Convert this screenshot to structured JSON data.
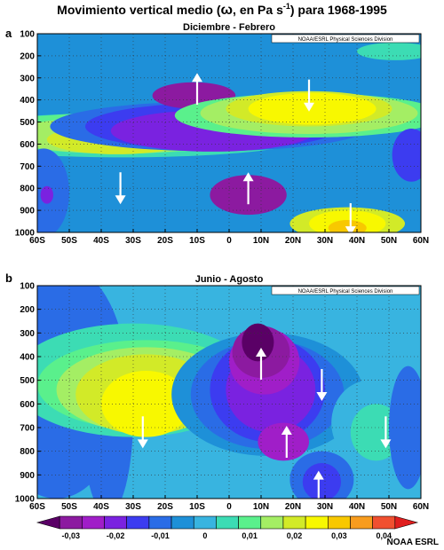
{
  "title_main": "Movimiento vertical medio (",
  "title_omega": "ω",
  "title_units": ", en Pa s",
  "title_exp": "-1",
  "title_tail": ") para 1968-1995",
  "credit": "NOAA ESRL",
  "chart_data": [
    {
      "type": "heatmap",
      "panel": "a",
      "title": "Diciembre - Febrero",
      "watermark": "NOAA/ESRL Physical Sciences Division",
      "x_ticks": [
        "60S",
        "50S",
        "40S",
        "30S",
        "20S",
        "10S",
        "0",
        "10N",
        "20N",
        "30N",
        "40N",
        "50N",
        "60N"
      ],
      "y_ticks": [
        "100",
        "200",
        "300",
        "400",
        "500",
        "600",
        "700",
        "800",
        "900",
        "1000"
      ],
      "xlim": [
        -60,
        60
      ],
      "ylim": [
        100,
        1000
      ],
      "grid": true,
      "features": [
        {
          "lat": -36,
          "p": 580,
          "omega": 0.02
        },
        {
          "lat": -10,
          "p": 450,
          "omega": -0.02
        },
        {
          "lat": 6,
          "p": 800,
          "omega": -0.02
        },
        {
          "lat": 25,
          "p": 450,
          "omega": 0.025
        },
        {
          "lat": 38,
          "p": 930,
          "omega": 0.028
        },
        {
          "lat": 57,
          "p": 700,
          "omega": -0.012
        },
        {
          "lat": -55,
          "p": 900,
          "omega": -0.012
        }
      ],
      "arrows": [
        {
          "lat": -34,
          "p": 800,
          "direction": "down"
        },
        {
          "lat": -10,
          "p": 350,
          "direction": "up"
        },
        {
          "lat": 6,
          "p": 800,
          "direction": "up"
        },
        {
          "lat": 25,
          "p": 380,
          "direction": "down"
        },
        {
          "lat": 38,
          "p": 940,
          "direction": "down"
        }
      ]
    },
    {
      "type": "heatmap",
      "panel": "b",
      "title": "Junio - Agosto",
      "watermark": "NOAA/ESRL Physical Sciences Division",
      "x_ticks": [
        "60S",
        "50S",
        "40S",
        "30S",
        "20S",
        "10S",
        "0",
        "10N",
        "20N",
        "30N",
        "40N",
        "50N",
        "60N"
      ],
      "y_ticks": [
        "100",
        "200",
        "300",
        "400",
        "500",
        "600",
        "700",
        "800",
        "900",
        "1000"
      ],
      "xlim": [
        -60,
        60
      ],
      "ylim": [
        100,
        1000
      ],
      "grid": true,
      "features": [
        {
          "lat": -25,
          "p": 600,
          "omega": 0.028
        },
        {
          "lat": 10,
          "p": 420,
          "omega": -0.03
        },
        {
          "lat": 18,
          "p": 720,
          "omega": -0.018
        },
        {
          "lat": 28,
          "p": 900,
          "omega": -0.012
        },
        {
          "lat": 46,
          "p": 600,
          "omega": 0.008
        }
      ],
      "arrows": [
        {
          "lat": -27,
          "p": 720,
          "direction": "down"
        },
        {
          "lat": 10,
          "p": 430,
          "direction": "up"
        },
        {
          "lat": 18,
          "p": 760,
          "direction": "up"
        },
        {
          "lat": 29,
          "p": 520,
          "direction": "down"
        },
        {
          "lat": 28,
          "p": 950,
          "direction": "up"
        },
        {
          "lat": 49,
          "p": 720,
          "direction": "down"
        }
      ]
    }
  ],
  "colorbar": {
    "labels": [
      "-0,03",
      "-0,02",
      "-0,01",
      "0",
      "0,01",
      "0,02",
      "0,03",
      "0,04"
    ],
    "colors": [
      "#5a0066",
      "#8c1aa0",
      "#a01ec8",
      "#7a22e0",
      "#3c3cf0",
      "#2a6ce6",
      "#1e90d8",
      "#38b4e0",
      "#3cdcb4",
      "#5af08c",
      "#a4ee64",
      "#d2ea28",
      "#f8f800",
      "#f8c800",
      "#f89c1e",
      "#f05030",
      "#e01e1e"
    ]
  }
}
